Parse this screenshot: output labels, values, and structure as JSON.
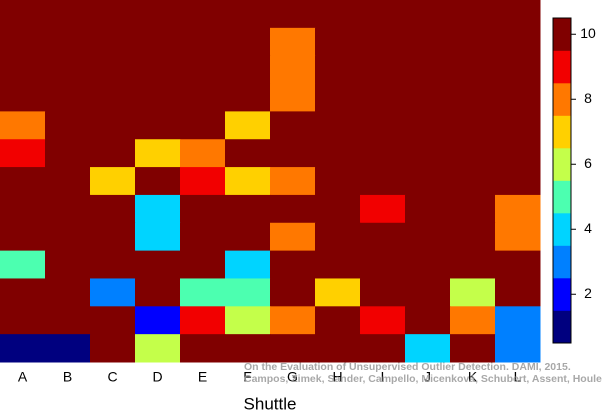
{
  "chart_data": {
    "type": "heatmap",
    "xlabel": "Shuttle",
    "categories": [
      "A",
      "B",
      "C",
      "D",
      "E",
      "F",
      "G",
      "H",
      "I",
      "J",
      "K",
      "L"
    ],
    "values": [
      [
        10,
        10,
        10,
        10,
        10,
        10,
        10,
        10,
        10,
        10,
        10,
        10
      ],
      [
        10,
        10,
        10,
        10,
        10,
        10,
        8,
        10,
        10,
        10,
        10,
        10
      ],
      [
        10,
        10,
        10,
        10,
        10,
        10,
        8,
        10,
        10,
        10,
        10,
        10
      ],
      [
        10,
        10,
        10,
        10,
        10,
        10,
        8,
        10,
        10,
        10,
        10,
        10
      ],
      [
        8,
        10,
        10,
        10,
        10,
        7,
        10,
        10,
        10,
        10,
        10,
        10
      ],
      [
        9,
        10,
        10,
        7,
        8,
        10,
        10,
        10,
        10,
        10,
        10,
        10
      ],
      [
        10,
        10,
        7,
        10,
        9,
        7,
        8,
        10,
        10,
        10,
        10,
        10
      ],
      [
        10,
        10,
        10,
        4,
        10,
        10,
        10,
        10,
        9,
        10,
        10,
        8
      ],
      [
        10,
        10,
        10,
        4,
        10,
        10,
        8,
        10,
        10,
        10,
        10,
        8
      ],
      [
        5,
        10,
        10,
        10,
        10,
        4,
        10,
        10,
        10,
        10,
        10,
        10
      ],
      [
        10,
        10,
        3,
        10,
        5,
        5,
        10,
        7,
        10,
        10,
        6,
        10
      ],
      [
        10,
        10,
        10,
        2,
        9,
        6,
        8,
        10,
        9,
        10,
        8,
        3
      ],
      [
        1,
        1,
        10,
        6,
        10,
        10,
        10,
        10,
        10,
        4,
        10,
        3
      ]
    ],
    "colors": [
      "#00007f",
      "#0000ff",
      "#0080ff",
      "#00d4ff",
      "#4cffb0",
      "#c4ff4a",
      "#ffd000",
      "#ff7800",
      "#f20000",
      "#800000"
    ],
    "clim": [
      0.5,
      10.5
    ],
    "cticks": [
      2,
      4,
      6,
      8,
      10
    ],
    "annotations": [
      "On the Evaluation of Unsupervised Outlier Detection. DAMI, 2015.",
      "Campos, Zimek, Sander, Campello, Micenková, Schubert, Assent, Houle"
    ]
  }
}
